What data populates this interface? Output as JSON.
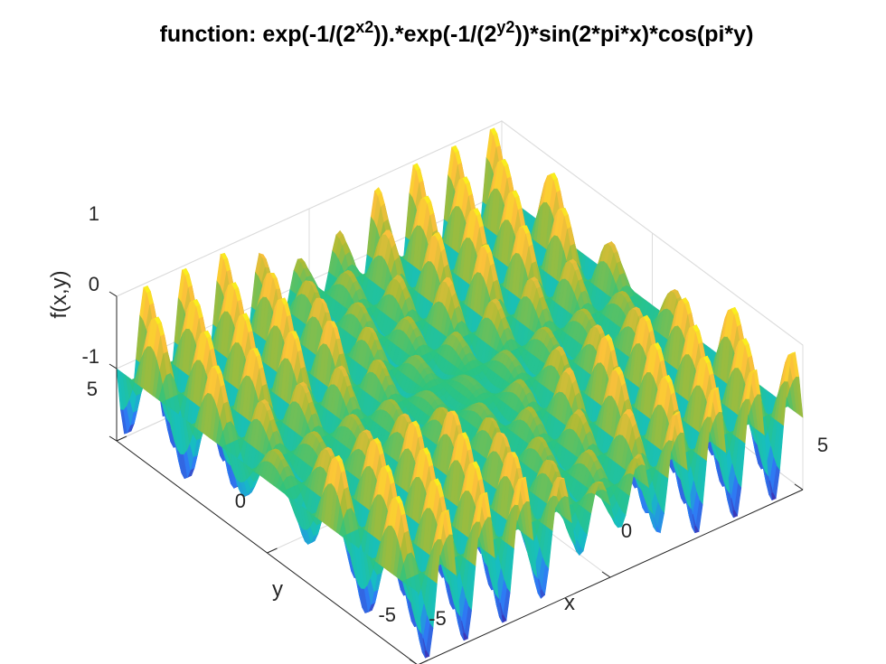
{
  "chart_data": {
    "type": "surface",
    "title": {
      "prefix": "function: exp(-1/(2",
      "sup1": "x2",
      "mid": ")).*exp(-1/(2",
      "sup2": "y2",
      "suffix": "))*sin(2*pi*x)*cos(pi*y)"
    },
    "xlabel": "x",
    "ylabel": "y",
    "zlabel": "f(x,y)",
    "xlim": [
      -5,
      5
    ],
    "ylim": [
      -5,
      5
    ],
    "zlim": [
      -1,
      1
    ],
    "xticks": [
      -5,
      0,
      5
    ],
    "yticks": [
      -5,
      0,
      5
    ],
    "zticks": [
      -1,
      0,
      1
    ],
    "grid": true,
    "colormap": "parula",
    "colors": [
      "#3e26a8",
      "#2e7cf5",
      "#16bfc1",
      "#2cc47f",
      "#abbb36",
      "#fbc03b",
      "#f9fb15"
    ]
  },
  "page": {
    "xtick_labels": [
      "-5",
      "0",
      "5"
    ],
    "ytick_labels": [
      "-5",
      "0",
      "5"
    ],
    "ztick_labels": [
      "-1",
      "0",
      "1"
    ]
  }
}
